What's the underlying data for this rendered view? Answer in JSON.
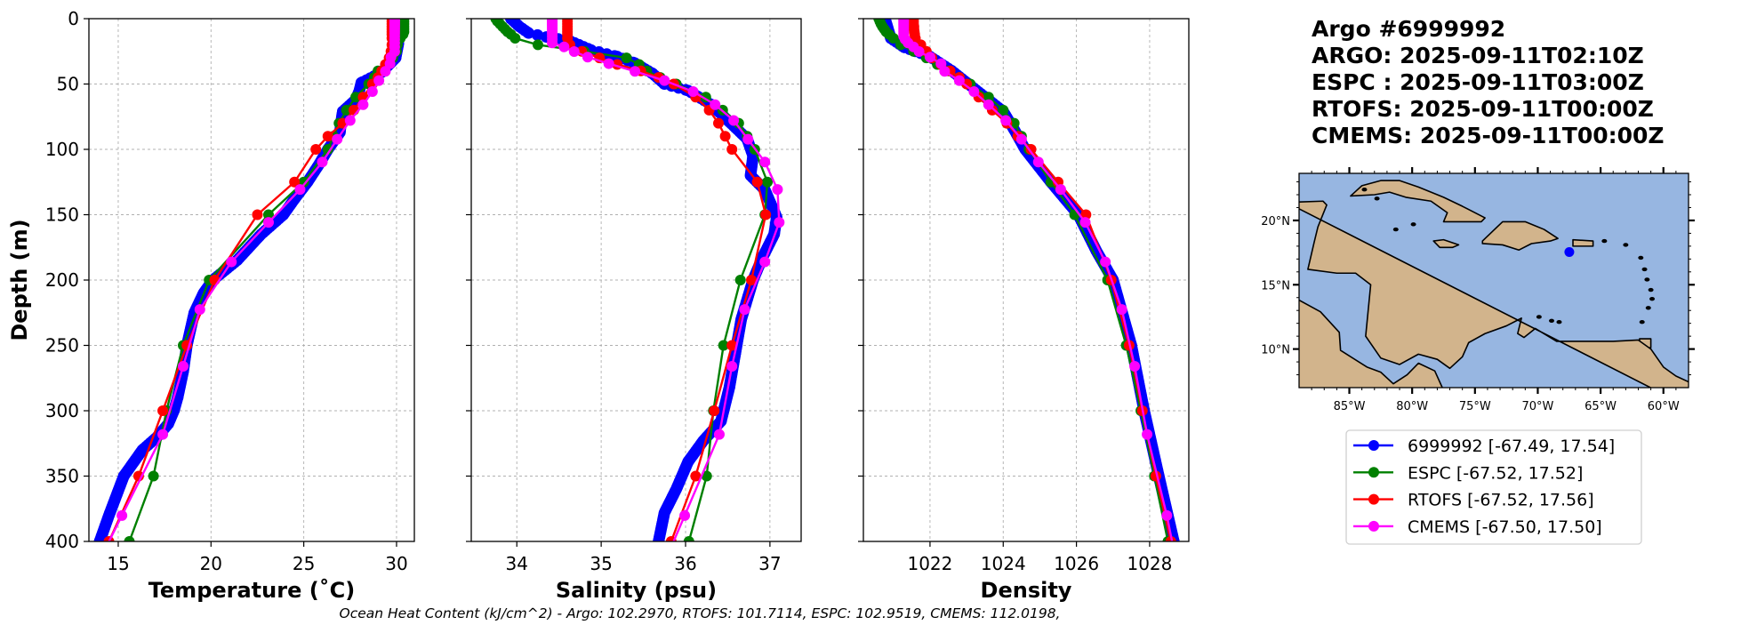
{
  "header": {
    "lines": [
      "Argo #6999992",
      "ARGO: 2025-09-11T02:10Z",
      "ESPC : 2025-09-11T03:00Z",
      "RTOFS: 2025-09-11T00:00Z",
      "CMEMS: 2025-09-11T00:00Z"
    ]
  },
  "footer": {
    "text": "Ocean Heat Content (kJ/cm^2) - Argo: 102.2970,  RTOFS: 101.7114,  ESPC: 102.9519,  CMEMS: 112.0198,"
  },
  "colors": {
    "argo": "#0000ff",
    "espc": "#008000",
    "rtofs": "#ff0000",
    "cmems": "#ff00ff",
    "ocean": "#97b6e1",
    "land": "#d2b48c",
    "grid": "#b0b0b0"
  },
  "legend": {
    "placement": "below-map",
    "entries": [
      {
        "label": "6999992 [-67.49, 17.54]",
        "color": "#0000ff"
      },
      {
        "label": "ESPC [-67.52, 17.52]",
        "color": "#008000"
      },
      {
        "label": "RTOFS [-67.52, 17.56]",
        "color": "#ff0000"
      },
      {
        "label": "CMEMS [-67.50, 17.50]",
        "color": "#ff00ff"
      }
    ]
  },
  "map": {
    "lon_range": [
      -89.0,
      -58.0
    ],
    "lat_range": [
      7.0,
      23.66
    ],
    "lon_ticks": [
      -85,
      -80,
      -75,
      -70,
      -65,
      -60
    ],
    "lon_labels": [
      "85°W",
      "80°W",
      "75°W",
      "70°W",
      "65°W",
      "60°W"
    ],
    "lat_ticks": [
      10,
      15,
      20
    ],
    "lat_labels": [
      "10°N",
      "15°N",
      "20°N"
    ],
    "float_position": [
      -67.49,
      17.54
    ]
  },
  "chart_data": [
    {
      "type": "line",
      "title": "",
      "xlabel": "Temperature (˚C)",
      "ylabel": "Depth (m)",
      "xlim": [
        13.42,
        30.96
      ],
      "ylim": [
        400,
        0
      ],
      "xticks": [
        15,
        20,
        25,
        30
      ],
      "yticks": [
        0,
        50,
        100,
        150,
        200,
        250,
        300,
        350,
        400
      ],
      "grid": true,
      "series": [
        {
          "name": "6999992",
          "color": "#0000ff",
          "depth": [
            0,
            10,
            19,
            30,
            41,
            49,
            55,
            62,
            71,
            80,
            87,
            100,
            112,
            125,
            138,
            150,
            165,
            185,
            200,
            210,
            225,
            250,
            270,
            290,
            300,
            310,
            320,
            330,
            340,
            350,
            365,
            380,
            400
          ],
          "values": [
            30.0,
            30.05,
            30.1,
            29.95,
            29.2,
            28.1,
            28.0,
            27.8,
            27.1,
            27.0,
            26.95,
            26.3,
            25.8,
            25.2,
            24.5,
            23.9,
            22.7,
            21.4,
            20.1,
            19.6,
            19.1,
            18.7,
            18.5,
            18.2,
            18.0,
            17.7,
            17.1,
            16.3,
            15.8,
            15.3,
            14.9,
            14.5,
            14.0
          ]
        },
        {
          "name": "ESPC",
          "color": "#008000",
          "depth": [
            0,
            2,
            4,
            6,
            8,
            10,
            12,
            15,
            20,
            25,
            30,
            35,
            40,
            45,
            50,
            60,
            70,
            80,
            90,
            100,
            125,
            150,
            200,
            250,
            300,
            350,
            400
          ],
          "values": [
            30.4,
            30.4,
            30.4,
            30.4,
            30.4,
            30.4,
            30.35,
            30.2,
            30.05,
            30.0,
            29.8,
            29.5,
            29.0,
            28.8,
            28.5,
            27.8,
            27.3,
            26.9,
            26.6,
            26.3,
            25.0,
            23.1,
            19.9,
            18.5,
            17.6,
            16.9,
            15.6
          ]
        },
        {
          "name": "RTOFS",
          "color": "#ff0000",
          "depth": [
            0,
            2,
            4,
            6,
            8,
            10,
            12,
            15,
            20,
            25,
            30,
            35,
            40,
            45,
            50,
            60,
            70,
            80,
            90,
            100,
            125,
            150,
            200,
            250,
            300,
            350,
            400
          ],
          "values": [
            29.75,
            29.75,
            29.75,
            29.75,
            29.75,
            29.75,
            29.75,
            29.75,
            29.75,
            29.7,
            29.6,
            29.4,
            29.2,
            29.0,
            28.7,
            28.2,
            27.7,
            27.1,
            26.3,
            25.65,
            24.5,
            22.5,
            20.2,
            18.7,
            17.4,
            16.1,
            14.5
          ]
        },
        {
          "name": "CMEMS",
          "color": "#ff00ff",
          "depth": [
            0.5,
            1.5,
            2.6,
            3.8,
            5.1,
            6.4,
            7.9,
            9.6,
            11.4,
            13.5,
            15.8,
            18.5,
            21.6,
            25.2,
            29.4,
            34.4,
            40.3,
            47.4,
            55.8,
            65.8,
            77.9,
            92.3,
            109.7,
            130.7,
            155.9,
            186.1,
            222.5,
            266.0,
            318.1,
            380.2,
            453.9
          ],
          "values": [
            29.9,
            29.9,
            29.9,
            29.9,
            29.9,
            29.9,
            29.9,
            29.9,
            29.9,
            29.9,
            29.9,
            29.9,
            29.9,
            29.9,
            29.7,
            29.65,
            29.4,
            29.05,
            28.7,
            28.2,
            27.5,
            26.8,
            26.0,
            24.8,
            23.1,
            21.1,
            19.4,
            18.5,
            17.4,
            15.2,
            12.6
          ]
        }
      ]
    },
    {
      "type": "line",
      "title": "",
      "xlabel": "Salinity (psu)",
      "ylabel": "",
      "xlim": [
        33.46,
        37.37
      ],
      "ylim": [
        400,
        0
      ],
      "xticks": [
        34,
        35,
        36,
        37
      ],
      "yticks": [
        0,
        50,
        100,
        150,
        200,
        250,
        300,
        350,
        400
      ],
      "grid": true,
      "series": [
        {
          "name": "6999992",
          "color": "#0000ff",
          "depth": [
            0,
            6,
            11,
            14,
            17,
            24,
            29,
            34,
            42,
            50,
            55,
            66,
            79,
            92,
            105,
            120,
            131,
            152,
            165,
            183,
            200,
            230,
            256,
            282,
            308,
            323,
            339,
            360,
            378,
            400
          ],
          "values": [
            33.93,
            34.03,
            34.14,
            34.35,
            34.63,
            34.88,
            35.19,
            35.4,
            35.61,
            35.75,
            36.03,
            36.31,
            36.52,
            36.73,
            36.8,
            36.77,
            36.94,
            37.08,
            37.05,
            36.91,
            36.8,
            36.66,
            36.59,
            36.52,
            36.42,
            36.21,
            36.03,
            35.89,
            35.75,
            35.68
          ]
        },
        {
          "name": "ESPC",
          "color": "#008000",
          "depth": [
            0,
            2,
            4,
            6,
            8,
            10,
            12,
            15,
            20,
            25,
            30,
            35,
            40,
            45,
            50,
            60,
            70,
            80,
            90,
            100,
            125,
            150,
            200,
            250,
            300,
            350,
            400
          ],
          "values": [
            33.75,
            33.77,
            33.8,
            33.83,
            33.86,
            33.89,
            33.93,
            33.98,
            34.25,
            34.8,
            35.3,
            35.45,
            35.54,
            35.7,
            35.89,
            36.24,
            36.44,
            36.63,
            36.73,
            36.82,
            36.97,
            36.94,
            36.65,
            36.45,
            36.33,
            36.25,
            36.04
          ]
        },
        {
          "name": "RTOFS",
          "color": "#ff0000",
          "depth": [
            0,
            2,
            4,
            6,
            8,
            10,
            12,
            15,
            20,
            25,
            30,
            35,
            40,
            45,
            50,
            60,
            70,
            80,
            90,
            100,
            125,
            150,
            200,
            250,
            300,
            350,
            400
          ],
          "values": [
            34.6,
            34.6,
            34.6,
            34.6,
            34.6,
            34.6,
            34.6,
            34.6,
            34.63,
            34.77,
            34.98,
            35.19,
            35.47,
            35.68,
            35.86,
            36.12,
            36.28,
            36.39,
            36.47,
            36.55,
            36.85,
            36.95,
            36.78,
            36.55,
            36.34,
            36.12,
            35.83
          ]
        },
        {
          "name": "CMEMS",
          "color": "#ff00ff",
          "depth": [
            0.5,
            1.5,
            2.6,
            3.8,
            5.1,
            6.4,
            7.9,
            9.6,
            11.4,
            13.5,
            15.8,
            18.5,
            21.6,
            25.2,
            29.4,
            34.4,
            40.3,
            47.4,
            55.8,
            65.8,
            77.9,
            92.3,
            109.7,
            130.7,
            155.9,
            186.1,
            222.5,
            266.0,
            318.1,
            380.2,
            453.9
          ],
          "values": [
            34.42,
            34.42,
            34.42,
            34.42,
            34.42,
            34.42,
            34.42,
            34.42,
            34.42,
            34.42,
            34.42,
            34.42,
            34.56,
            34.68,
            34.84,
            35.09,
            35.4,
            35.75,
            36.09,
            36.35,
            36.57,
            36.74,
            36.94,
            37.09,
            37.11,
            36.94,
            36.7,
            36.55,
            36.4,
            35.99,
            35.5
          ]
        }
      ]
    },
    {
      "type": "line",
      "title": "",
      "xlabel": "Density",
      "ylabel": "",
      "xlim": [
        1020.18,
        1029.07
      ],
      "ylim": [
        400,
        0
      ],
      "xticks": [
        1022,
        1024,
        1026,
        1028
      ],
      "yticks": [
        0,
        50,
        100,
        150,
        200,
        250,
        300,
        350,
        400
      ],
      "grid": true,
      "series": [
        {
          "name": "6999992",
          "color": "#0000ff",
          "depth": [
            0,
            15,
            22,
            29,
            40,
            50,
            71,
            85,
            100,
            125,
            150,
            178,
            200,
            250,
            300,
            350,
            400
          ],
          "values": [
            1020.77,
            1020.93,
            1021.3,
            1022.0,
            1022.6,
            1023.05,
            1024.0,
            1024.3,
            1024.6,
            1025.3,
            1026.05,
            1026.55,
            1027.0,
            1027.5,
            1027.85,
            1028.25,
            1028.66
          ]
        },
        {
          "name": "ESPC",
          "color": "#008000",
          "depth": [
            0,
            2,
            4,
            6,
            8,
            10,
            12,
            15,
            20,
            25,
            30,
            35,
            40,
            45,
            50,
            60,
            70,
            80,
            90,
            100,
            125,
            150,
            200,
            250,
            300,
            350,
            400
          ],
          "values": [
            1020.6,
            1020.63,
            1020.66,
            1020.7,
            1020.75,
            1020.8,
            1020.88,
            1021.0,
            1021.2,
            1021.55,
            1021.9,
            1022.2,
            1022.5,
            1022.8,
            1023.1,
            1023.6,
            1024.0,
            1024.3,
            1024.5,
            1024.7,
            1025.3,
            1025.95,
            1026.85,
            1027.36,
            1027.76,
            1028.13,
            1028.5
          ]
        },
        {
          "name": "RTOFS",
          "color": "#ff0000",
          "depth": [
            0,
            2,
            4,
            6,
            8,
            10,
            12,
            15,
            20,
            25,
            30,
            35,
            40,
            45,
            50,
            60,
            70,
            80,
            90,
            100,
            125,
            150,
            200,
            250,
            300,
            350,
            400
          ],
          "values": [
            1021.55,
            1021.55,
            1021.55,
            1021.56,
            1021.56,
            1021.57,
            1021.58,
            1021.6,
            1021.75,
            1021.9,
            1022.05,
            1022.3,
            1022.55,
            1022.8,
            1023.0,
            1023.33,
            1023.7,
            1024.1,
            1024.4,
            1024.76,
            1025.5,
            1026.26,
            1026.95,
            1027.44,
            1027.8,
            1028.17,
            1028.58
          ]
        },
        {
          "name": "CMEMS",
          "color": "#ff00ff",
          "depth": [
            0.5,
            1.5,
            2.6,
            3.8,
            5.1,
            6.4,
            7.9,
            9.6,
            11.4,
            13.5,
            15.8,
            18.5,
            21.6,
            25.2,
            29.4,
            34.4,
            40.3,
            47.4,
            55.8,
            65.8,
            77.9,
            92.3,
            109.7,
            130.7,
            155.9,
            186.1,
            222.5,
            266.0,
            318.1,
            380.2,
            453.9
          ],
          "values": [
            1021.28,
            1021.28,
            1021.28,
            1021.28,
            1021.28,
            1021.28,
            1021.28,
            1021.28,
            1021.28,
            1021.28,
            1021.32,
            1021.4,
            1021.55,
            1021.7,
            1022.0,
            1022.3,
            1022.4,
            1022.8,
            1023.2,
            1023.6,
            1024.07,
            1024.5,
            1024.96,
            1025.57,
            1026.24,
            1026.79,
            1027.24,
            1027.59,
            1027.93,
            1028.47,
            1029.0
          ]
        }
      ]
    }
  ]
}
